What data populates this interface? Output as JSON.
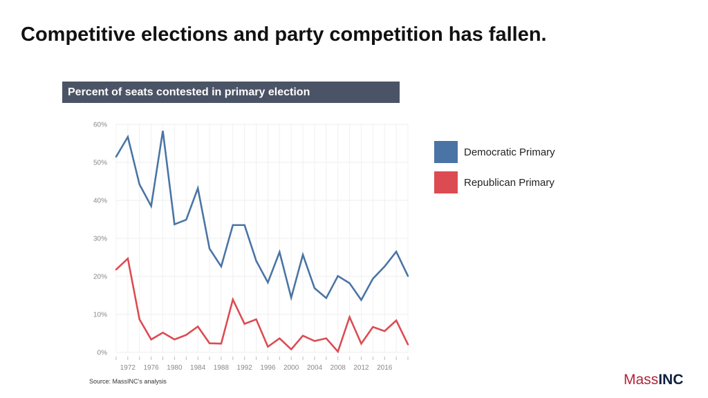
{
  "slide": {
    "title": "Competitive elections and party competition has fallen.",
    "chart_header": "Percent of seats contested in primary election",
    "source": "Source: MassINC’s analysis",
    "brand_prefix": "Mass",
    "brand_suffix": "INC"
  },
  "colors": {
    "democratic": "#4a74a5",
    "republican": "#dc4b52",
    "header_bg": "#4b5466"
  },
  "chart_data": {
    "type": "line",
    "title": "Percent of seats contested in primary election",
    "xlabel": "",
    "ylabel": "",
    "ylim": [
      0,
      60
    ],
    "yticks": [
      0,
      10,
      20,
      30,
      40,
      50,
      60
    ],
    "ytick_labels": [
      "0%",
      "10%",
      "20%",
      "30%",
      "40%",
      "50%",
      "60%"
    ],
    "x": [
      1970,
      1972,
      1974,
      1976,
      1978,
      1980,
      1982,
      1984,
      1986,
      1988,
      1990,
      1992,
      1994,
      1996,
      1998,
      2000,
      2002,
      2004,
      2006,
      2008,
      2010,
      2012,
      2014,
      2016,
      2018,
      2020
    ],
    "xticks": [
      1972,
      1976,
      1980,
      1984,
      1988,
      1992,
      1996,
      2000,
      2004,
      2008,
      2012,
      2016
    ],
    "xlim": [
      1970,
      2020
    ],
    "grid": true,
    "legend_position": "right",
    "series": [
      {
        "name": "Democratic Primary",
        "color": "#4a74a5",
        "values": [
          51.5,
          56.7,
          44.2,
          38.5,
          58.3,
          33.7,
          34.9,
          43.2,
          27.3,
          22.6,
          33.5,
          33.5,
          24.1,
          18.4,
          26.4,
          14.4,
          25.7,
          16.9,
          14.3,
          20.1,
          18.2,
          13.8,
          19.4,
          22.6,
          26.5,
          20.1
        ]
      },
      {
        "name": "Republican Primary",
        "color": "#dc4b52",
        "values": [
          21.8,
          24.7,
          8.7,
          3.4,
          5.2,
          3.4,
          4.6,
          6.8,
          2.4,
          2.3,
          13.9,
          7.5,
          8.7,
          1.5,
          3.7,
          0.8,
          4.4,
          3.0,
          3.7,
          0.2,
          9.3,
          2.3,
          6.7,
          5.6,
          8.4,
          2.1
        ]
      }
    ]
  }
}
